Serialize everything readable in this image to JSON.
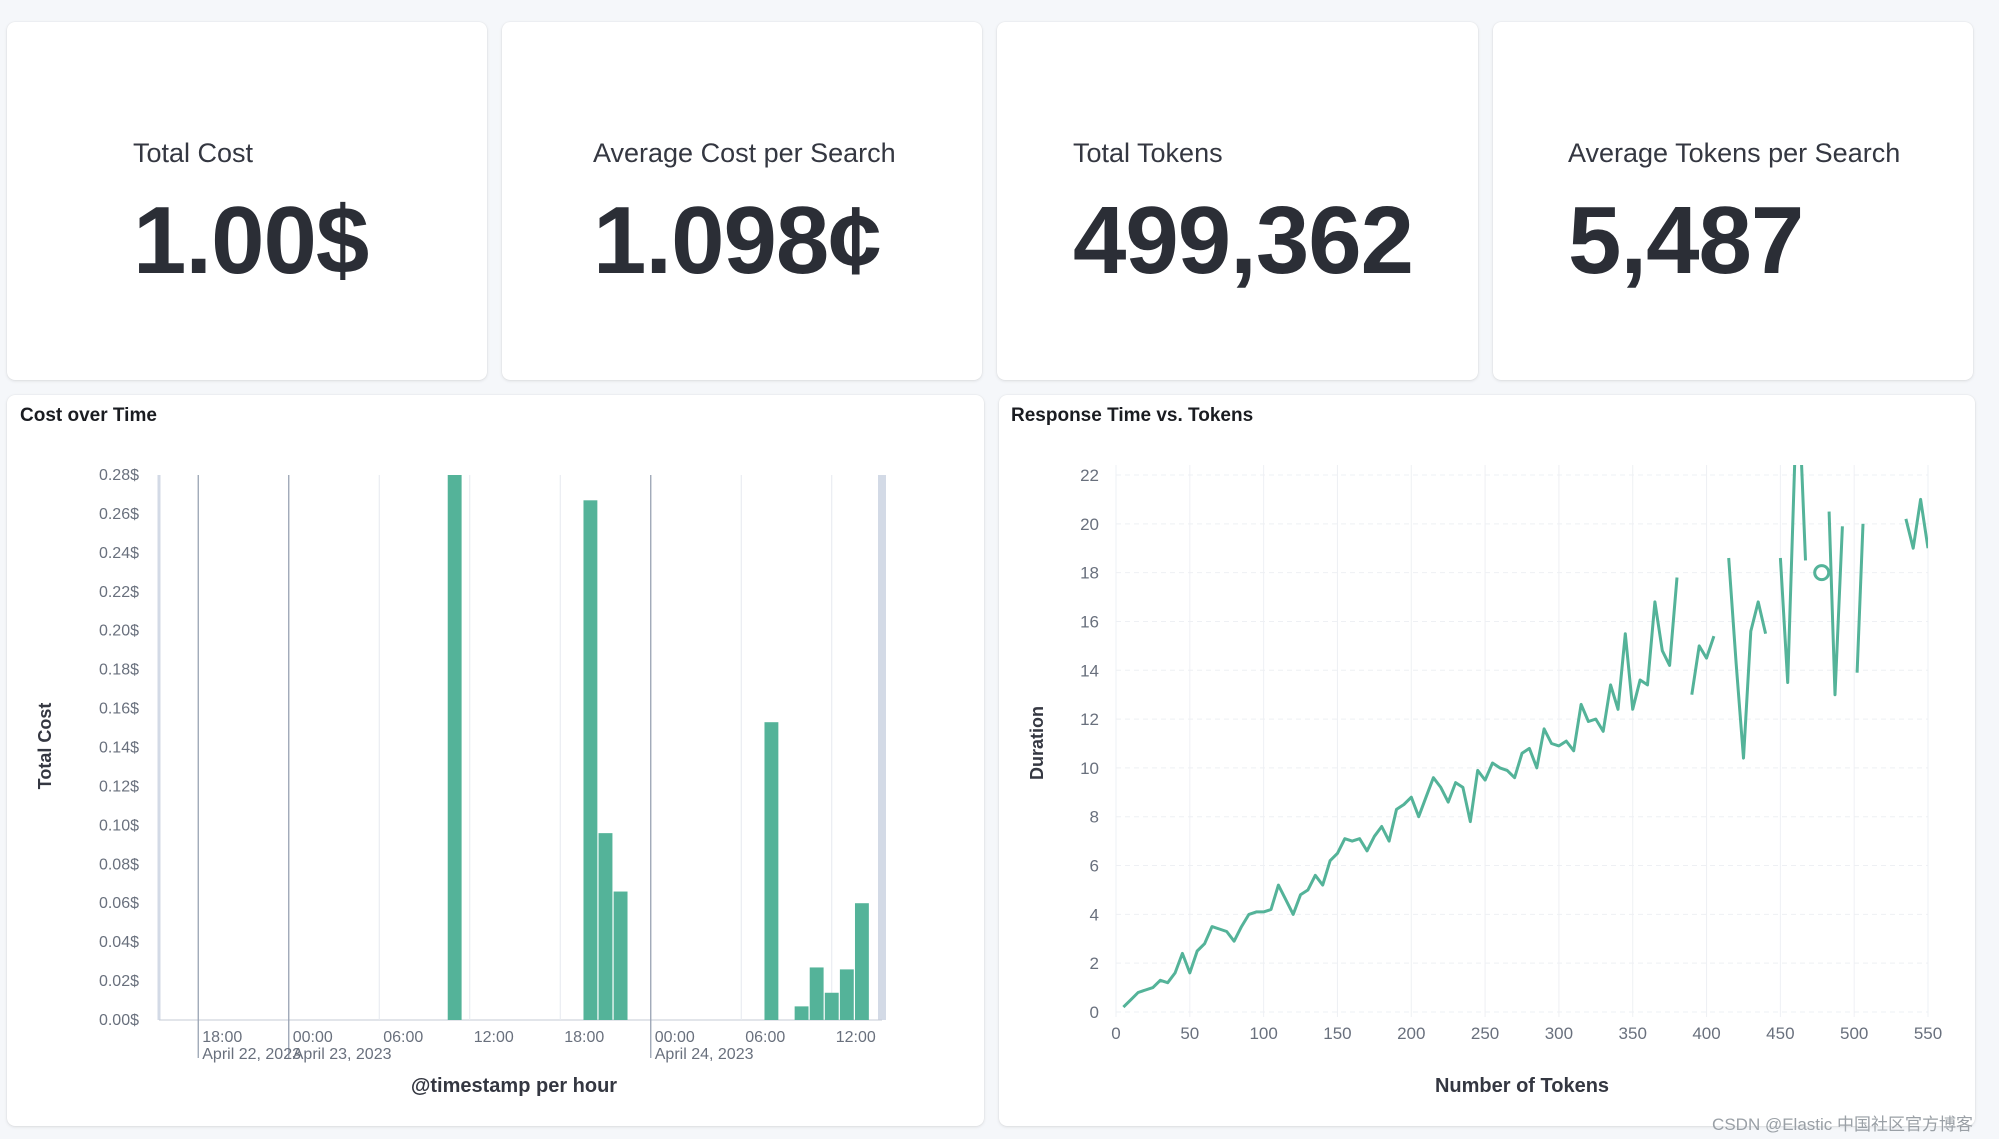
{
  "metrics": [
    {
      "label": "Total Cost",
      "value": "1.00$"
    },
    {
      "label": "Average Cost per Search",
      "value": "1.098¢"
    },
    {
      "label": "Total Tokens",
      "value": "499,362"
    },
    {
      "label": "Average Tokens per Search",
      "value": "5,487"
    }
  ],
  "cost_chart": {
    "title": "Cost over Time",
    "ylabel": "Total Cost",
    "xlabel": "@timestamp per hour"
  },
  "response_chart": {
    "title": "Response Time vs. Tokens",
    "ylabel": "Duration",
    "xlabel": "Number of Tokens"
  },
  "watermark": "CSDN @Elastic 中国社区官方博客",
  "chart_data": [
    {
      "type": "bar",
      "title": "Cost over Time",
      "xlabel": "@timestamp per hour",
      "ylabel": "Total Cost",
      "ylim": [
        0,
        0.28
      ],
      "y_ticks": [
        "0.00$",
        "0.02$",
        "0.04$",
        "0.06$",
        "0.08$",
        "0.10$",
        "0.12$",
        "0.14$",
        "0.16$",
        "0.18$",
        "0.20$",
        "0.22$",
        "0.24$",
        "0.26$",
        "0.28$"
      ],
      "x_ticks": [
        {
          "time": "18:00",
          "date": "April 22, 2023",
          "hour": 18
        },
        {
          "time": "00:00",
          "date": "April 23, 2023",
          "hour": 24
        },
        {
          "time": "06:00",
          "date": "",
          "hour": 30
        },
        {
          "time": "12:00",
          "date": "",
          "hour": 36
        },
        {
          "time": "18:00",
          "date": "",
          "hour": 42
        },
        {
          "time": "00:00",
          "date": "April 24, 2023",
          "hour": 48
        },
        {
          "time": "06:00",
          "date": "",
          "hour": 54
        },
        {
          "time": "12:00",
          "date": "",
          "hour": 60
        }
      ],
      "x_range_hours": [
        15,
        63
      ],
      "bars": [
        {
          "hour": 35,
          "value": 0.28
        },
        {
          "hour": 44,
          "value": 0.267
        },
        {
          "hour": 45,
          "value": 0.096
        },
        {
          "hour": 46,
          "value": 0.066
        },
        {
          "hour": 56,
          "value": 0.153
        },
        {
          "hour": 58,
          "value": 0.007
        },
        {
          "hour": 59,
          "value": 0.027
        },
        {
          "hour": 60,
          "value": 0.014
        },
        {
          "hour": 61,
          "value": 0.026
        },
        {
          "hour": 62,
          "value": 0.06
        }
      ],
      "grid": true,
      "color": "#54b399"
    },
    {
      "type": "line",
      "title": "Response Time vs. Tokens",
      "xlabel": "Number of Tokens",
      "ylabel": "Duration",
      "xlim": [
        0,
        550
      ],
      "ylim": [
        0,
        22
      ],
      "x_ticks": [
        0,
        50,
        100,
        150,
        200,
        250,
        300,
        350,
        400,
        450,
        500,
        550
      ],
      "y_ticks": [
        0,
        2,
        4,
        6,
        8,
        10,
        12,
        14,
        16,
        18,
        20,
        22
      ],
      "grid": true,
      "color": "#54b399",
      "series": [
        {
          "segments": [
            [
              [
                5,
                0.2
              ],
              [
                10,
                0.5
              ],
              [
                15,
                0.8
              ],
              [
                20,
                0.9
              ],
              [
                25,
                1.0
              ],
              [
                30,
                1.3
              ],
              [
                35,
                1.2
              ],
              [
                40,
                1.6
              ],
              [
                45,
                2.4
              ],
              [
                50,
                1.6
              ],
              [
                55,
                2.5
              ],
              [
                60,
                2.8
              ],
              [
                65,
                3.5
              ],
              [
                70,
                3.4
              ],
              [
                75,
                3.3
              ],
              [
                80,
                2.9
              ],
              [
                85,
                3.5
              ],
              [
                90,
                4.0
              ],
              [
                95,
                4.1
              ],
              [
                100,
                4.1
              ],
              [
                105,
                4.2
              ],
              [
                110,
                5.2
              ],
              [
                115,
                4.6
              ],
              [
                120,
                4.0
              ],
              [
                125,
                4.8
              ],
              [
                130,
                5.0
              ],
              [
                135,
                5.6
              ],
              [
                140,
                5.2
              ],
              [
                145,
                6.2
              ],
              [
                150,
                6.5
              ],
              [
                155,
                7.1
              ],
              [
                160,
                7.0
              ],
              [
                165,
                7.1
              ],
              [
                170,
                6.6
              ],
              [
                175,
                7.2
              ],
              [
                180,
                7.6
              ],
              [
                185,
                7.0
              ],
              [
                190,
                8.3
              ],
              [
                195,
                8.5
              ],
              [
                200,
                8.8
              ],
              [
                205,
                8.0
              ],
              [
                210,
                8.8
              ],
              [
                215,
                9.6
              ],
              [
                220,
                9.2
              ],
              [
                225,
                8.6
              ],
              [
                230,
                9.4
              ],
              [
                235,
                9.2
              ],
              [
                240,
                7.8
              ],
              [
                245,
                9.9
              ],
              [
                250,
                9.5
              ],
              [
                255,
                10.2
              ],
              [
                260,
                10.0
              ],
              [
                265,
                9.9
              ],
              [
                270,
                9.6
              ],
              [
                275,
                10.6
              ],
              [
                280,
                10.8
              ],
              [
                285,
                10.0
              ],
              [
                290,
                11.6
              ],
              [
                295,
                11.0
              ],
              [
                300,
                10.9
              ],
              [
                305,
                11.1
              ],
              [
                310,
                10.7
              ],
              [
                315,
                12.6
              ],
              [
                320,
                11.9
              ],
              [
                325,
                12.0
              ],
              [
                330,
                11.5
              ],
              [
                335,
                13.4
              ],
              [
                340,
                12.4
              ],
              [
                345,
                15.5
              ],
              [
                350,
                12.4
              ],
              [
                355,
                13.6
              ],
              [
                360,
                13.4
              ],
              [
                365,
                16.8
              ],
              [
                370,
                14.8
              ],
              [
                375,
                14.2
              ],
              [
                380,
                17.8
              ]
            ],
            [
              [
                390,
                13.0
              ],
              [
                395,
                15.0
              ],
              [
                400,
                14.5
              ],
              [
                405,
                15.4
              ]
            ],
            [
              [
                415,
                18.6
              ],
              [
                420,
                14.3
              ],
              [
                425,
                10.4
              ],
              [
                430,
                15.6
              ],
              [
                435,
                16.8
              ],
              [
                440,
                15.5
              ]
            ],
            [
              [
                450,
                18.6
              ],
              [
                455,
                13.5
              ],
              [
                460,
                23.0
              ],
              [
                464,
                23.0
              ],
              [
                467,
                18.5
              ]
            ],
            [
              [
                483,
                20.5
              ],
              [
                487,
                13.0
              ],
              [
                492,
                19.9
              ]
            ],
            [
              [
                502,
                13.9
              ],
              [
                506,
                20.0
              ]
            ],
            [
              [
                535,
                20.2
              ],
              [
                540,
                19.0
              ],
              [
                545,
                21.0
              ],
              [
                550,
                19.0
              ]
            ]
          ]
        }
      ],
      "points": [
        [
          478,
          18.0
        ]
      ]
    }
  ]
}
